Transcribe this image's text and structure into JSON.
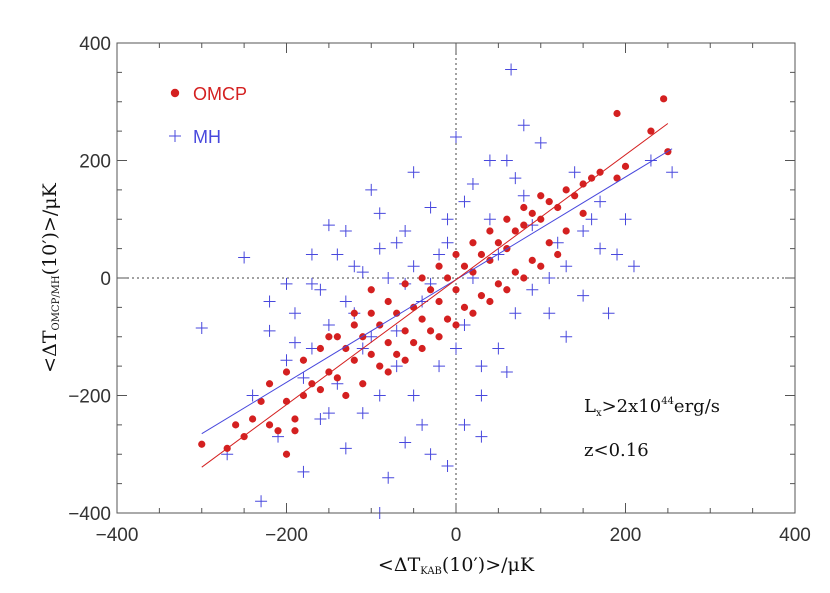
{
  "chart_data": {
    "type": "scatter",
    "xlabel": {
      "pre": "<ΔT",
      "sub": "KAB",
      "post": "(10′)>/μK"
    },
    "ylabel": {
      "pre": "<ΔT",
      "sub": "OMCP/MH",
      "post": "(10′)>/μK"
    },
    "xlim": [
      -400,
      400
    ],
    "ylim": [
      -400,
      400
    ],
    "xticks": [
      -400,
      -200,
      0,
      200,
      400
    ],
    "yticks": [
      -400,
      -200,
      0,
      200,
      400
    ],
    "xtick_labels": [
      "−400",
      "−200",
      "0",
      "200",
      "400"
    ],
    "ytick_labels": [
      "−400",
      "−200",
      "0",
      "200",
      "400"
    ],
    "grid": false,
    "reference_lines": [
      {
        "axis": "x",
        "value": 0,
        "style": "dotted"
      },
      {
        "axis": "y",
        "value": 0,
        "style": "dotted"
      }
    ],
    "legend_position": "top-left",
    "annotations": [
      {
        "pre": "L",
        "sub": "x",
        "post": ">2x10",
        "sup": "44",
        "tail": "erg/s"
      },
      {
        "text": "z<0.16"
      }
    ],
    "series": [
      {
        "name": "OMCP",
        "marker": "filled-circle",
        "color": "#d42020",
        "fit_line": {
          "x": [
            -300,
            250
          ],
          "y": [
            -322,
            263
          ]
        },
        "points": [
          [
            -300,
            -283
          ],
          [
            -270,
            -290
          ],
          [
            -260,
            -250
          ],
          [
            -250,
            -270
          ],
          [
            -240,
            -240
          ],
          [
            -230,
            -210
          ],
          [
            -220,
            -250
          ],
          [
            -210,
            -260
          ],
          [
            -200,
            -210
          ],
          [
            -190,
            -240
          ],
          [
            -180,
            -200
          ],
          [
            -170,
            -180
          ],
          [
            -160,
            -190
          ],
          [
            -150,
            -160
          ],
          [
            -140,
            -170
          ],
          [
            -130,
            -120
          ],
          [
            -120,
            -140
          ],
          [
            -110,
            -100
          ],
          [
            -100,
            -130
          ],
          [
            -90,
            -80
          ],
          [
            -80,
            -110
          ],
          [
            -70,
            -60
          ],
          [
            -60,
            -90
          ],
          [
            -50,
            -50
          ],
          [
            -40,
            -70
          ],
          [
            -30,
            -20
          ],
          [
            -20,
            -40
          ],
          [
            -10,
            0
          ],
          [
            0,
            -20
          ],
          [
            10,
            20
          ],
          [
            20,
            10
          ],
          [
            30,
            40
          ],
          [
            40,
            30
          ],
          [
            50,
            60
          ],
          [
            60,
            50
          ],
          [
            70,
            80
          ],
          [
            80,
            90
          ],
          [
            90,
            110
          ],
          [
            100,
            100
          ],
          [
            110,
            130
          ],
          [
            120,
            120
          ],
          [
            130,
            150
          ],
          [
            140,
            140
          ],
          [
            150,
            160
          ],
          [
            160,
            170
          ],
          [
            170,
            180
          ],
          [
            190,
            170
          ],
          [
            200,
            190
          ],
          [
            230,
            250
          ],
          [
            250,
            215
          ],
          [
            190,
            280
          ],
          [
            245,
            305
          ],
          [
            -150,
            -100
          ],
          [
            -120,
            -60
          ],
          [
            -100,
            -20
          ],
          [
            -80,
            -40
          ],
          [
            -60,
            -10
          ],
          [
            -40,
            0
          ],
          [
            -20,
            20
          ],
          [
            0,
            40
          ],
          [
            20,
            60
          ],
          [
            40,
            80
          ],
          [
            60,
            100
          ],
          [
            80,
            120
          ],
          [
            100,
            140
          ],
          [
            -200,
            -160
          ],
          [
            -180,
            -140
          ],
          [
            -160,
            -120
          ],
          [
            -140,
            -100
          ],
          [
            -120,
            -80
          ],
          [
            -100,
            -60
          ],
          [
            -80,
            -160
          ],
          [
            -60,
            -140
          ],
          [
            -40,
            -120
          ],
          [
            -20,
            -100
          ],
          [
            0,
            -80
          ],
          [
            20,
            -60
          ],
          [
            40,
            -40
          ],
          [
            60,
            -20
          ],
          [
            80,
            0
          ],
          [
            100,
            20
          ],
          [
            120,
            40
          ],
          [
            -220,
            -180
          ],
          [
            -200,
            -300
          ],
          [
            -190,
            -260
          ],
          [
            -130,
            -200
          ],
          [
            -110,
            -180
          ],
          [
            -90,
            -150
          ],
          [
            -70,
            -130
          ],
          [
            -50,
            -110
          ],
          [
            -30,
            -90
          ],
          [
            -10,
            -70
          ],
          [
            10,
            -50
          ],
          [
            30,
            -30
          ],
          [
            50,
            -10
          ],
          [
            70,
            10
          ],
          [
            90,
            30
          ],
          [
            110,
            60
          ],
          [
            130,
            80
          ],
          [
            150,
            110
          ]
        ]
      },
      {
        "name": "MH",
        "marker": "plus",
        "color": "#4848dd",
        "fit_line": {
          "x": [
            -300,
            255
          ],
          "y": [
            -265,
            220
          ]
        },
        "points": [
          [
            -300,
            -85
          ],
          [
            -270,
            -300
          ],
          [
            -250,
            35
          ],
          [
            -230,
            -380
          ],
          [
            -210,
            -270
          ],
          [
            -200,
            -140
          ],
          [
            -190,
            -60
          ],
          [
            -180,
            -330
          ],
          [
            -170,
            -10
          ],
          [
            -160,
            -240
          ],
          [
            -150,
            90
          ],
          [
            -140,
            -180
          ],
          [
            -130,
            -290
          ],
          [
            -120,
            20
          ],
          [
            -110,
            -120
          ],
          [
            -100,
            150
          ],
          [
            -90,
            -200
          ],
          [
            -80,
            -340
          ],
          [
            -70,
            60
          ],
          [
            -60,
            -10
          ],
          [
            -50,
            180
          ],
          [
            -40,
            -250
          ],
          [
            -30,
            120
          ],
          [
            -20,
            -150
          ],
          [
            -10,
            60
          ],
          [
            0,
            240
          ],
          [
            10,
            -80
          ],
          [
            20,
            160
          ],
          [
            30,
            -200
          ],
          [
            40,
            100
          ],
          [
            50,
            -120
          ],
          [
            60,
            200
          ],
          [
            65,
            355
          ],
          [
            70,
            -60
          ],
          [
            80,
            140
          ],
          [
            90,
            -20
          ],
          [
            100,
            230
          ],
          [
            110,
            0
          ],
          [
            120,
            60
          ],
          [
            130,
            -100
          ],
          [
            140,
            180
          ],
          [
            150,
            -30
          ],
          [
            160,
            100
          ],
          [
            170,
            50
          ],
          [
            180,
            -60
          ],
          [
            200,
            100
          ],
          [
            210,
            20
          ],
          [
            230,
            200
          ],
          [
            255,
            180
          ],
          [
            -220,
            -90
          ],
          [
            -240,
            -200
          ],
          [
            -180,
            -170
          ],
          [
            -160,
            -20
          ],
          [
            -140,
            40
          ],
          [
            -120,
            -60
          ],
          [
            -100,
            -100
          ],
          [
            -80,
            0
          ],
          [
            -60,
            80
          ],
          [
            -40,
            -40
          ],
          [
            -20,
            40
          ],
          [
            0,
            -120
          ],
          [
            20,
            0
          ],
          [
            40,
            200
          ],
          [
            60,
            -160
          ],
          [
            80,
            260
          ],
          [
            -90,
            -400
          ],
          [
            -30,
            -300
          ],
          [
            -10,
            -320
          ],
          [
            10,
            -250
          ],
          [
            30,
            -270
          ],
          [
            -60,
            -280
          ],
          [
            -200,
            -10
          ],
          [
            -170,
            -120
          ],
          [
            -150,
            -80
          ],
          [
            -130,
            -40
          ],
          [
            -110,
            10
          ],
          [
            -90,
            50
          ],
          [
            -70,
            -150
          ],
          [
            -50,
            -200
          ],
          [
            -30,
            -10
          ],
          [
            -10,
            100
          ],
          [
            10,
            130
          ],
          [
            30,
            -150
          ],
          [
            50,
            40
          ],
          [
            70,
            170
          ],
          [
            90,
            90
          ],
          [
            110,
            -60
          ],
          [
            130,
            20
          ],
          [
            150,
            80
          ],
          [
            170,
            130
          ],
          [
            190,
            40
          ],
          [
            -220,
            -40
          ],
          [
            -190,
            -110
          ],
          [
            -170,
            40
          ],
          [
            -150,
            -230
          ],
          [
            -130,
            80
          ],
          [
            -110,
            -230
          ],
          [
            -90,
            110
          ],
          [
            -70,
            -90
          ],
          [
            -50,
            20
          ]
        ]
      }
    ]
  }
}
